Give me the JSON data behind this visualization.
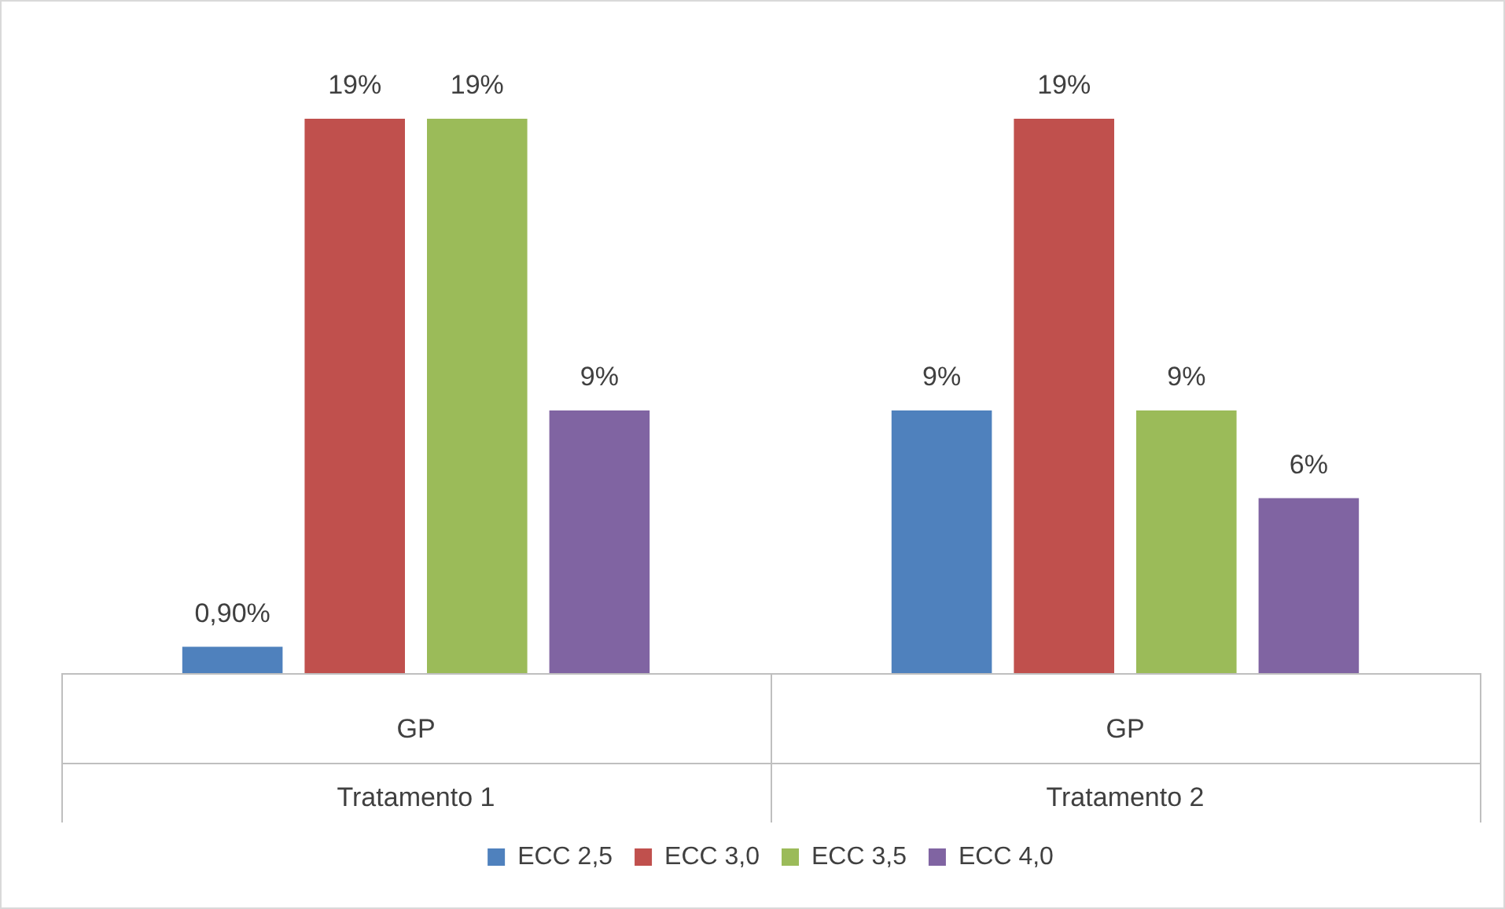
{
  "chart_data": {
    "type": "bar",
    "categories": [
      "GP",
      "GP"
    ],
    "series": [
      {
        "name": "ECC 2,5",
        "color": "#4f81bd",
        "values": [
          0.9,
          9
        ],
        "value_labels": [
          "0,90%",
          "9%"
        ]
      },
      {
        "name": "ECC 3,0",
        "color": "#c0504d",
        "values": [
          19,
          19
        ],
        "value_labels": [
          "19%",
          "19%"
        ]
      },
      {
        "name": "ECC 3,5",
        "color": "#9bbb59",
        "values": [
          19,
          9
        ],
        "value_labels": [
          "19%",
          "9%"
        ]
      },
      {
        "name": "ECC 4,0",
        "color": "#8064a2",
        "values": [
          9,
          6
        ],
        "value_labels": [
          "9%",
          "6%"
        ]
      }
    ],
    "annotations": [
      "Tratamento 1",
      "Tratamento 2"
    ],
    "legend": "bottom",
    "grid": false
  }
}
